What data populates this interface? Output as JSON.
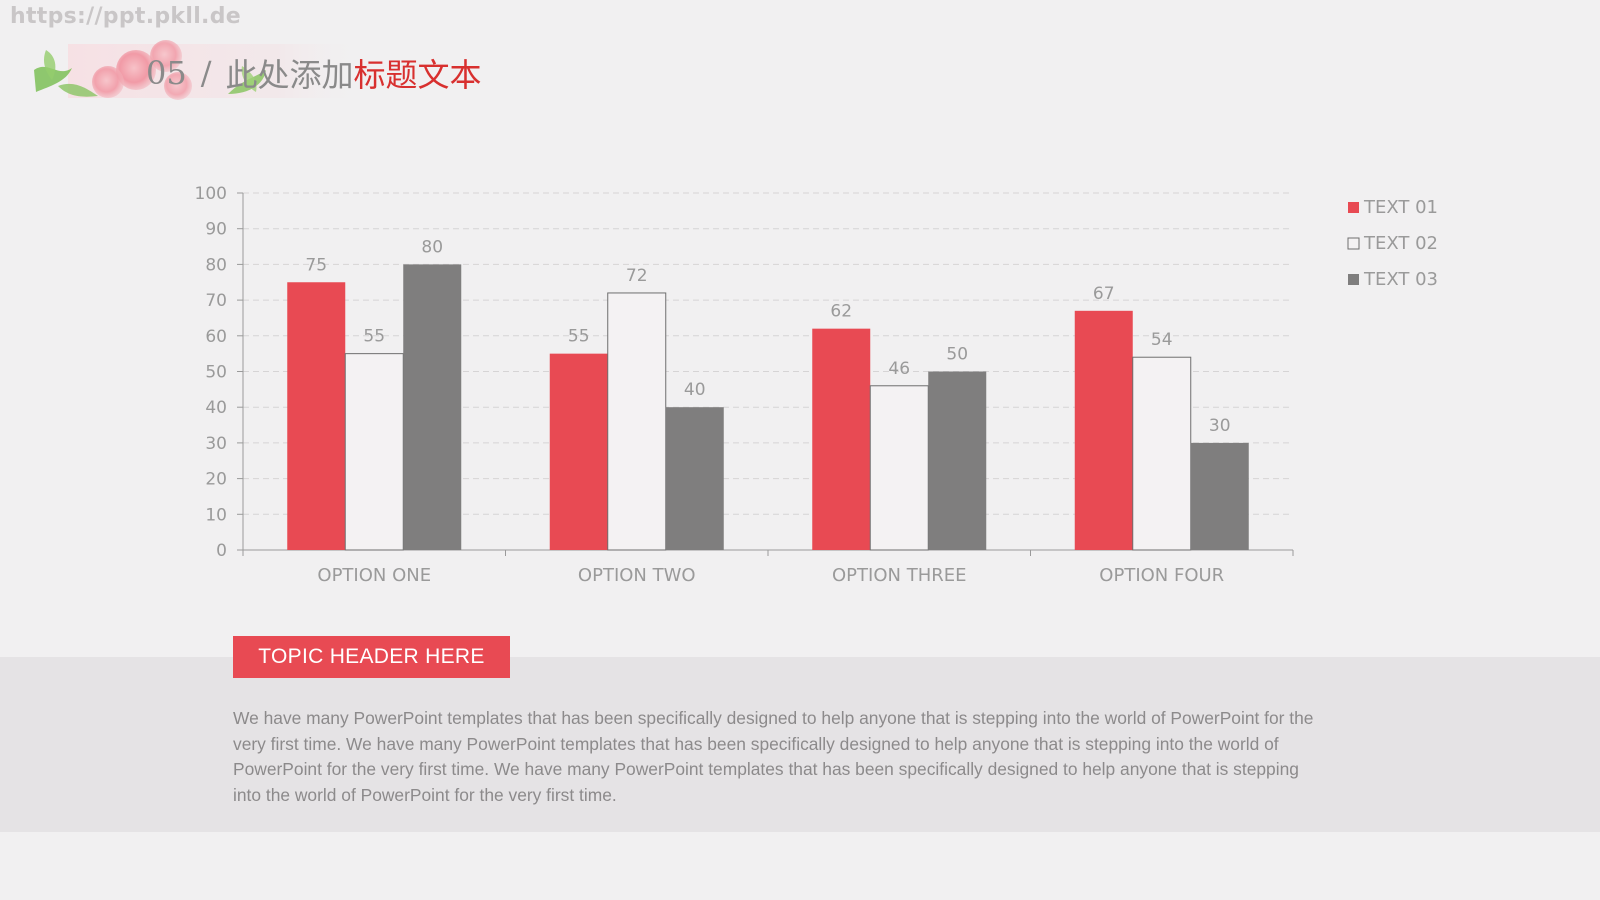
{
  "watermark": "https://ppt.pkll.de",
  "title": {
    "number": "05",
    "slash": "/",
    "gray_part": "此处添加",
    "red_part": "标题文本"
  },
  "colors": {
    "red": "#e84a53",
    "white": "#f4f2f3",
    "gray": "#7f7e7e",
    "axis": "#9a9a9a",
    "label": "#9a9a9a"
  },
  "chart_data": {
    "type": "bar",
    "categories": [
      "OPTION ONE",
      "OPTION TWO",
      "OPTION THREE",
      "OPTION FOUR"
    ],
    "series": [
      {
        "name": "TEXT 01",
        "values": [
          75,
          55,
          62,
          67
        ],
        "color": "#e84a53"
      },
      {
        "name": "TEXT 02",
        "values": [
          55,
          72,
          46,
          54
        ],
        "color": "#f4f2f3"
      },
      {
        "name": "TEXT 03",
        "values": [
          80,
          40,
          50,
          30
        ],
        "color": "#7f7e7e"
      }
    ],
    "ylim": [
      0,
      100
    ],
    "yticks": [
      0,
      10,
      20,
      30,
      40,
      50,
      60,
      70,
      80,
      90,
      100
    ],
    "grid": true,
    "legend": "right",
    "data_labels": true
  },
  "topic": {
    "header": "TOPIC HEADER HERE",
    "body": "We have many PowerPoint templates that has been specifically designed to help anyone that is stepping into the world of PowerPoint for the very first time. We have many PowerPoint templates that has been specifically designed to help anyone that is stepping into the world of PowerPoint for the very first time. We have many PowerPoint templates that has been specifically designed to help anyone that is stepping into the world of PowerPoint for the very first time."
  }
}
